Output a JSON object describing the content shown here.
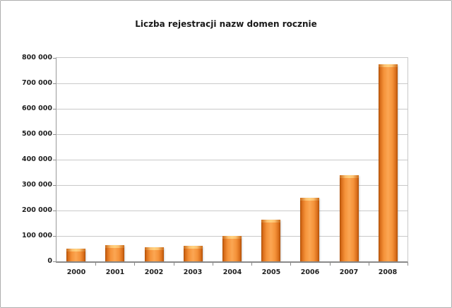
{
  "window": {
    "background": "#ffffff",
    "border_color": "#adadad"
  },
  "chart_data": {
    "type": "bar",
    "title": "Liczba rejestracji nazw domen rocznie",
    "xlabel": "",
    "ylabel": "",
    "categories": [
      "2000",
      "2001",
      "2002",
      "2003",
      "2004",
      "2005",
      "2006",
      "2007",
      "2008"
    ],
    "values": [
      50000,
      63000,
      55000,
      60000,
      100000,
      165000,
      250000,
      340000,
      775000
    ],
    "ylim": [
      0,
      800000
    ],
    "ytick_interval": 100000,
    "ytick_labels": [
      "0",
      "100 000",
      "200 000",
      "300 000",
      "400 000",
      "500 000",
      "600 000",
      "700 000",
      "800 000"
    ],
    "grid": "horizontal",
    "legend": "none",
    "colors": {
      "bar_main": "#f79646",
      "bar_edge": "#b05007",
      "bar_cap": "#fdc070",
      "gridline": "#c9c9c9",
      "axis": "#8a8a8a",
      "text": "#1f1f1f"
    }
  }
}
